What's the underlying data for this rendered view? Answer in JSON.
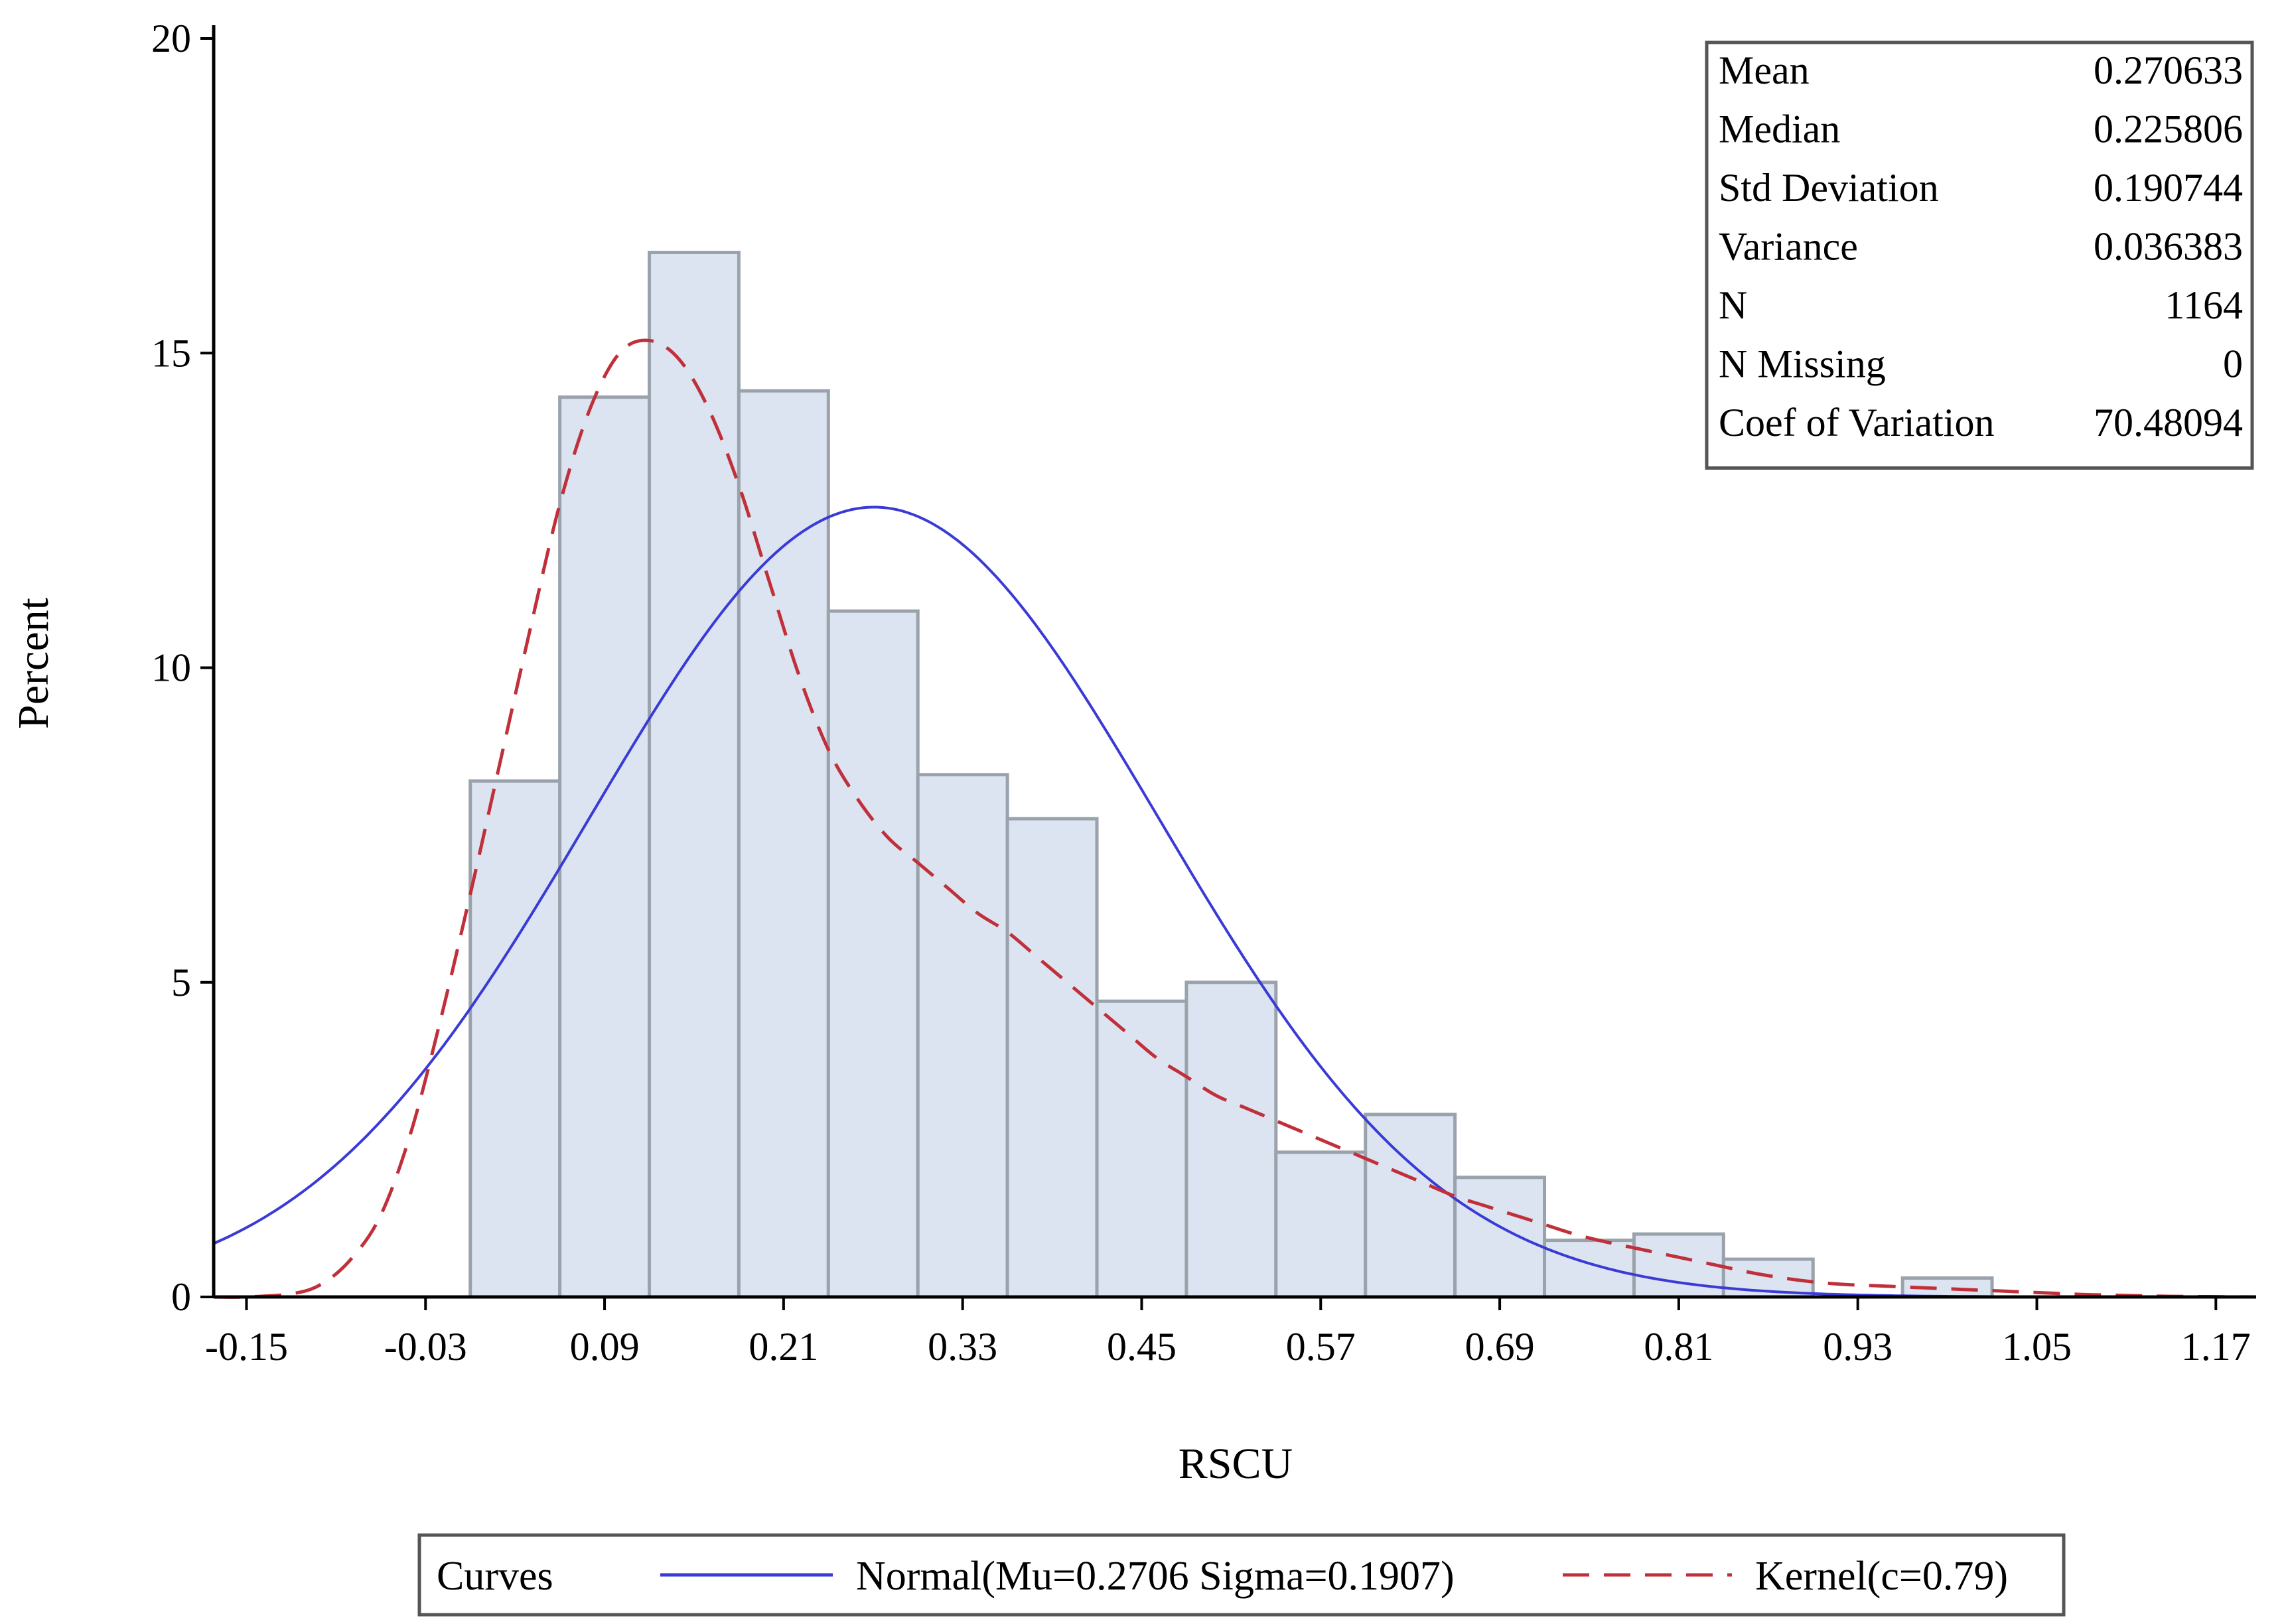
{
  "chart_data": {
    "type": "bar",
    "subtype": "histogram",
    "xlabel": "RSCU",
    "ylabel": "Percent",
    "xlim": [
      -0.172,
      1.197
    ],
    "ylim": [
      0,
      20
    ],
    "x_ticks": [
      "-0.15",
      "-0.03",
      "0.09",
      "0.21",
      "0.33",
      "0.45",
      "0.57",
      "0.69",
      "0.81",
      "0.93",
      "1.05",
      "1.17"
    ],
    "x_tick_values": [
      -0.15,
      -0.03,
      0.09,
      0.21,
      0.33,
      0.45,
      0.57,
      0.69,
      0.81,
      0.93,
      1.05,
      1.17
    ],
    "y_ticks": [
      "0",
      "5",
      "10",
      "15",
      "20"
    ],
    "y_tick_values": [
      0,
      5,
      10,
      15,
      20
    ],
    "bin_width": 0.06,
    "bin_left_edges": [
      0.0,
      0.06,
      0.12,
      0.18,
      0.24,
      0.3,
      0.36,
      0.42,
      0.48,
      0.54,
      0.6,
      0.66,
      0.72,
      0.78,
      0.84,
      0.9,
      0.96
    ],
    "percents": [
      8.2,
      14.3,
      16.6,
      14.4,
      10.9,
      8.3,
      7.6,
      4.7,
      5.0,
      2.3,
      2.9,
      1.9,
      0.9,
      1.0,
      0.6,
      0.0,
      0.3
    ],
    "series": [
      {
        "name": "Normal(Mu=0.2706 Sigma=0.1907)",
        "type": "line",
        "style": "solid",
        "color": "#3a3ad6",
        "mu": 0.2706,
        "sigma": 0.1907
      },
      {
        "name": "Kernel(c=0.79)",
        "type": "line",
        "style": "dashed",
        "color": "#c0303a",
        "x": [
          -0.172,
          -0.15,
          -0.12,
          -0.1,
          -0.08,
          -0.06,
          -0.04,
          -0.02,
          0.0,
          0.02,
          0.04,
          0.06,
          0.08,
          0.1,
          0.12,
          0.14,
          0.16,
          0.18,
          0.2,
          0.22,
          0.24,
          0.26,
          0.28,
          0.3,
          0.32,
          0.34,
          0.36,
          0.38,
          0.4,
          0.42,
          0.44,
          0.46,
          0.48,
          0.5,
          0.52,
          0.54,
          0.56,
          0.58,
          0.6,
          0.62,
          0.64,
          0.66,
          0.68,
          0.7,
          0.72,
          0.74,
          0.76,
          0.78,
          0.8,
          0.82,
          0.84,
          0.86,
          0.88,
          0.9,
          0.92,
          0.94,
          0.96,
          0.98,
          1.0,
          1.02,
          1.04,
          1.06,
          1.08,
          1.1,
          1.14,
          1.197
        ],
        "y": [
          0.0,
          0.0,
          0.05,
          0.2,
          0.6,
          1.3,
          2.6,
          4.4,
          6.4,
          8.5,
          10.6,
          12.6,
          14.1,
          15.0,
          15.2,
          14.9,
          14.1,
          12.9,
          11.4,
          9.9,
          8.7,
          7.9,
          7.3,
          6.9,
          6.5,
          6.1,
          5.8,
          5.4,
          5.0,
          4.6,
          4.2,
          3.8,
          3.5,
          3.2,
          3.0,
          2.8,
          2.6,
          2.4,
          2.2,
          2.0,
          1.8,
          1.6,
          1.45,
          1.3,
          1.15,
          1.0,
          0.88,
          0.78,
          0.68,
          0.58,
          0.48,
          0.38,
          0.3,
          0.24,
          0.2,
          0.18,
          0.16,
          0.14,
          0.12,
          0.1,
          0.08,
          0.06,
          0.04,
          0.03,
          0.01,
          0.0
        ]
      }
    ],
    "stats_table": [
      {
        "label": "Mean",
        "value": "0.270633"
      },
      {
        "label": "Median",
        "value": "0.225806"
      },
      {
        "label": "Std Deviation",
        "value": "0.190744"
      },
      {
        "label": "Variance",
        "value": "0.036383"
      },
      {
        "label": "N",
        "value": "1164"
      },
      {
        "label": "N Missing",
        "value": "0"
      },
      {
        "label": "Coef of Variation",
        "value": "70.48094"
      }
    ],
    "legend": {
      "title": "Curves",
      "placement": "bottom",
      "entries": [
        {
          "label": "Normal(Mu=0.2706 Sigma=0.1907)",
          "style": "solid",
          "color": "#3a3ad6"
        },
        {
          "label": "Kernel(c=0.79)",
          "style": "dashed",
          "color": "#c0303a"
        }
      ]
    },
    "bar_fill": "#dbe4f0",
    "bar_stroke": "#9aa3ab"
  }
}
